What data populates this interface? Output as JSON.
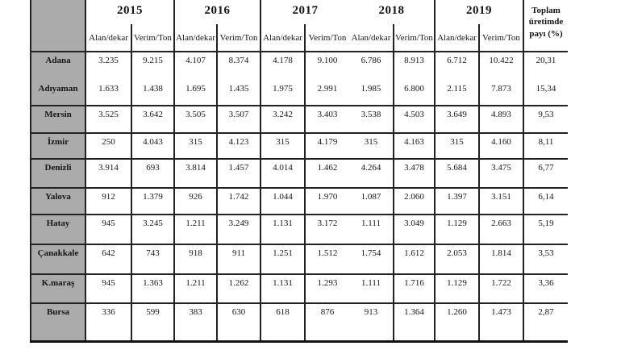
{
  "table": {
    "years": [
      "2015",
      "2016",
      "2017",
      "2018",
      "2019"
    ],
    "subheaders": {
      "alan": "Alan/dekar",
      "verim": "Verim/Ton"
    },
    "total_header": "Toplam üretimde payı (%)",
    "colors": {
      "row_header_bg": "#ababab",
      "border": "#222222",
      "background": "#ffffff"
    },
    "rows": [
      {
        "city": "Adana",
        "values": [
          "3.235",
          "9.215",
          "4.107",
          "8.374",
          "4.178",
          "9.100",
          "6.786",
          "8.913",
          "6.712",
          "10.422"
        ],
        "total": "20,31"
      },
      {
        "city": "Adıyaman",
        "values": [
          "1.633",
          "1.438",
          "1.695",
          "1.435",
          "1.975",
          "2.991",
          "1.985",
          "6.800",
          "2.115",
          "7.873"
        ],
        "total": "15,34"
      },
      {
        "city": "Mersin",
        "values": [
          "3.525",
          "3.642",
          "3.505",
          "3.507",
          "3.242",
          "3.403",
          "3.538",
          "4.503",
          "3.649",
          "4.893"
        ],
        "total": "9,53"
      },
      {
        "city": "İzmir",
        "values": [
          "250",
          "4.043",
          "315",
          "4.123",
          "315",
          "4.179",
          "315",
          "4.163",
          "315",
          "4.160"
        ],
        "total": "8,11"
      },
      {
        "city": "Denizli",
        "values": [
          "3.914",
          "693",
          "3.814",
          "1.457",
          "4.014",
          "1.462",
          "4.264",
          "3.478",
          "5.684",
          "3.475"
        ],
        "total": "6,77"
      },
      {
        "city": "Yalova",
        "values": [
          "912",
          "1.379",
          "926",
          "1.742",
          "1.044",
          "1.970",
          "1.087",
          "2.060",
          "1.397",
          "3.151"
        ],
        "total": "6,14"
      },
      {
        "city": "Hatay",
        "values": [
          "945",
          "3.245",
          "1.211",
          "3.249",
          "1.131",
          "3.172",
          "1.111",
          "3.049",
          "1.129",
          "2.663"
        ],
        "total": "5,19"
      },
      {
        "city": "Çanakkale",
        "values": [
          "642",
          "743",
          "918",
          "911",
          "1.251",
          "1.512",
          "1.754",
          "1.612",
          "2.053",
          "1.814"
        ],
        "total": "3,53"
      },
      {
        "city": "K.maraş",
        "values": [
          "945",
          "1.363",
          "1.211",
          "1.262",
          "1.131",
          "1.293",
          "1.111",
          "1.716",
          "1.129",
          "1.722"
        ],
        "total": "3,36"
      },
      {
        "city": "Bursa",
        "values": [
          "336",
          "599",
          "383",
          "630",
          "618",
          "876",
          "913",
          "1.364",
          "1.260",
          "1.473"
        ],
        "total": "2,87"
      }
    ]
  }
}
